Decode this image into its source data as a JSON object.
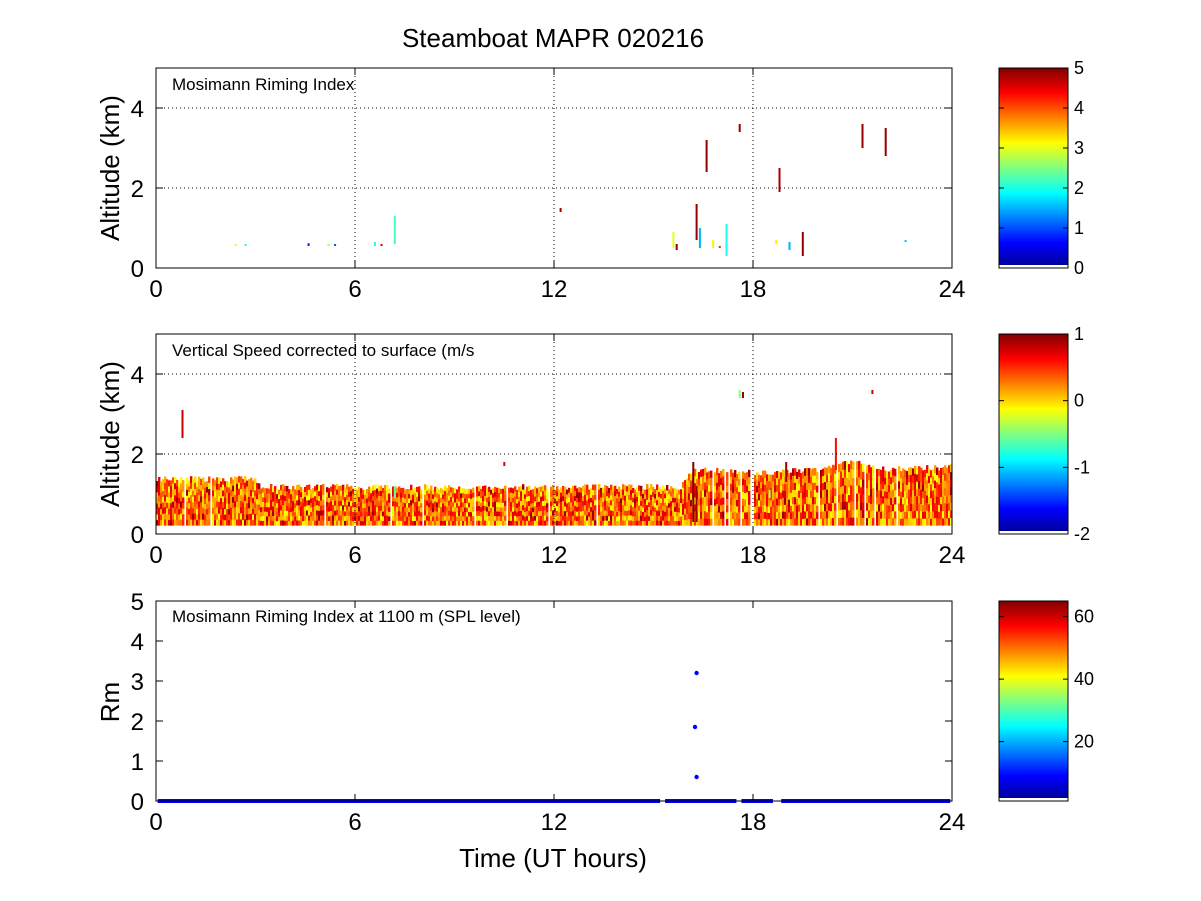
{
  "figure": {
    "title": "Steamboat MAPR 020216"
  },
  "colormap": [
    "#00008f",
    "#0000ff",
    "#0080ff",
    "#00ffff",
    "#80ff80",
    "#ffff00",
    "#ff8000",
    "#ff0000",
    "#800000"
  ],
  "chart_data": [
    {
      "type": "heatmap",
      "panel_label": "Mosimann Riming Index",
      "xlabel": "",
      "ylabel": "Altitude (km)",
      "xlim": [
        0,
        24
      ],
      "ylim": [
        0,
        5
      ],
      "xticks": [
        0,
        6,
        12,
        18,
        24
      ],
      "yticks": [
        0,
        2,
        4
      ],
      "grid": true,
      "colorbar": {
        "clim": [
          0,
          5
        ],
        "ticks": [
          0,
          1,
          2,
          3,
          4,
          5
        ]
      },
      "segments": [
        {
          "t": 2.4,
          "z0": 0.55,
          "z1": 0.6,
          "v": 3.2
        },
        {
          "t": 2.7,
          "z0": 0.55,
          "z1": 0.6,
          "v": 2.0
        },
        {
          "t": 4.6,
          "z0": 0.55,
          "z1": 0.62,
          "v": 0.8
        },
        {
          "t": 5.2,
          "z0": 0.55,
          "z1": 0.6,
          "v": 2.6
        },
        {
          "t": 5.4,
          "z0": 0.55,
          "z1": 0.6,
          "v": 1.0
        },
        {
          "t": 6.6,
          "z0": 0.55,
          "z1": 0.65,
          "v": 2.0
        },
        {
          "t": 6.8,
          "z0": 0.55,
          "z1": 0.6,
          "v": 4.6
        },
        {
          "t": 7.2,
          "z0": 0.6,
          "z1": 1.3,
          "v": 2.2
        },
        {
          "t": 12.2,
          "z0": 1.4,
          "z1": 1.5,
          "v": 4.8
        },
        {
          "t": 15.6,
          "z0": 0.5,
          "z1": 0.9,
          "v": 3.0
        },
        {
          "t": 15.7,
          "z0": 0.45,
          "z1": 0.6,
          "v": 4.9
        },
        {
          "t": 16.3,
          "z0": 0.7,
          "z1": 1.6,
          "v": 4.9
        },
        {
          "t": 16.4,
          "z0": 0.5,
          "z1": 1.0,
          "v": 1.5
        },
        {
          "t": 16.6,
          "z0": 2.4,
          "z1": 3.2,
          "v": 4.9
        },
        {
          "t": 16.8,
          "z0": 0.5,
          "z1": 0.7,
          "v": 3.2
        },
        {
          "t": 17.0,
          "z0": 0.5,
          "z1": 0.55,
          "v": 4.2
        },
        {
          "t": 17.2,
          "z0": 0.3,
          "z1": 1.1,
          "v": 2.0
        },
        {
          "t": 17.6,
          "z0": 3.4,
          "z1": 3.6,
          "v": 4.9
        },
        {
          "t": 18.8,
          "z0": 1.9,
          "z1": 2.5,
          "v": 4.8
        },
        {
          "t": 18.7,
          "z0": 0.6,
          "z1": 0.7,
          "v": 3.2
        },
        {
          "t": 19.1,
          "z0": 0.45,
          "z1": 0.65,
          "v": 1.5
        },
        {
          "t": 19.5,
          "z0": 0.3,
          "z1": 0.9,
          "v": 4.9
        },
        {
          "t": 21.3,
          "z0": 3.0,
          "z1": 3.6,
          "v": 4.9
        },
        {
          "t": 22.0,
          "z0": 2.8,
          "z1": 3.5,
          "v": 4.9
        },
        {
          "t": 22.6,
          "z0": 0.65,
          "z1": 0.7,
          "v": 1.6
        }
      ]
    },
    {
      "type": "heatmap",
      "panel_label": "Vertical Speed corrected to surface (m/s",
      "xlabel": "",
      "ylabel": "Altitude (km)",
      "xlim": [
        0,
        24
      ],
      "ylim": [
        0,
        5
      ],
      "xticks": [
        0,
        6,
        12,
        18,
        24
      ],
      "yticks": [
        0,
        2,
        4
      ],
      "grid": true,
      "colorbar": {
        "clim": [
          -2,
          1
        ],
        "ticks": [
          -2,
          -1,
          0,
          1
        ]
      },
      "data_extent": {
        "z_bottom": 0.22,
        "top": [
          [
            0,
            1.45
          ],
          [
            3,
            1.45
          ],
          [
            3.1,
            1.25
          ],
          [
            15.8,
            1.25
          ],
          [
            16.2,
            1.7
          ],
          [
            18,
            1.6
          ],
          [
            20,
            1.7
          ],
          [
            21,
            1.9
          ],
          [
            22,
            1.7
          ],
          [
            24,
            1.75
          ]
        ]
      },
      "dominant_value": 0.3,
      "segments": [
        {
          "t": 0.8,
          "z0": 2.4,
          "z1": 3.1,
          "v": 0.8
        },
        {
          "t": 16.2,
          "z0": 0.3,
          "z1": 1.8,
          "v": 1.0
        },
        {
          "t": 16.3,
          "z0": 0.3,
          "z1": 1.2,
          "v": 0.9
        },
        {
          "t": 17.6,
          "z0": 3.4,
          "z1": 3.6,
          "v": -0.5
        },
        {
          "t": 17.7,
          "z0": 3.4,
          "z1": 3.55,
          "v": 0.9
        },
        {
          "t": 19.0,
          "z0": 1.3,
          "z1": 1.8,
          "v": 0.9
        },
        {
          "t": 21.6,
          "z0": 3.5,
          "z1": 3.6,
          "v": 0.8
        },
        {
          "t": 7.2,
          "z0": 0.9,
          "z1": 1.2,
          "v": -0.6
        },
        {
          "t": 10.5,
          "z0": 1.7,
          "z1": 1.8,
          "v": 0.7
        },
        {
          "t": 18.5,
          "z0": 0.9,
          "z1": 1.1,
          "v": -0.4
        },
        {
          "t": 20.5,
          "z0": 1.6,
          "z1": 2.4,
          "v": 0.6
        }
      ]
    },
    {
      "type": "scatter",
      "panel_label": "Mosimann Riming Index at 1100 m (SPL level)",
      "xlabel": "Time (UT hours)",
      "ylabel": "Rm",
      "xlim": [
        0,
        24
      ],
      "ylim": [
        0,
        5
      ],
      "xticks": [
        0,
        6,
        12,
        18,
        24
      ],
      "yticks": [
        0,
        1,
        2,
        3,
        4,
        5
      ],
      "grid": false,
      "colorbar": {
        "clim": [
          1,
          65
        ],
        "ticks": [
          20,
          40,
          60
        ]
      },
      "baseline": {
        "y": 0,
        "x_start": 0.05,
        "x_end": 23.95,
        "gaps": [
          [
            15.2,
            15.35
          ],
          [
            17.5,
            17.65
          ],
          [
            18.6,
            18.85
          ]
        ]
      },
      "points": [
        {
          "x": 16.3,
          "y": 3.2
        },
        {
          "x": 16.25,
          "y": 1.85
        },
        {
          "x": 16.3,
          "y": 0.6
        }
      ]
    }
  ]
}
